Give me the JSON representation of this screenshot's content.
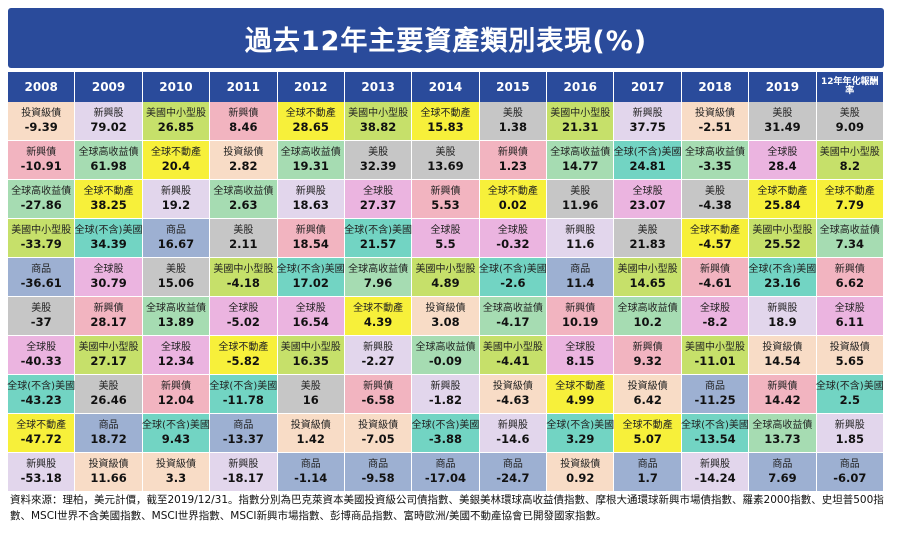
{
  "title": "過去12年主要資產類別表現(%)",
  "footnote": "資料來源：理柏，美元計價，截至2019/12/31。指數分別為巴克萊資本美國投資級公司債指數、美銀美林環球高收益債指數、摩根大通環球新興市場債指數、羅素2000指數、史坦普500指數、MSCI世界不含美國指數、MSCI世界指數、MSCI新興市場指數、彭博商品指數、富時歐洲/美國不動產協會已開發國家指數。",
  "colors": {
    "title_bg": "#2a4b9b",
    "投資級債": "#f8dcc6",
    "新興股": "#e2d6ec",
    "美國中小型股": "#c6e06a",
    "新興債": "#f2b4c0",
    "全球不動產": "#f7f03a",
    "美股": "#c6c6c6",
    "全球股": "#ebb4e0",
    "全球高收益債": "#a6dcb2",
    "商品": "#9db0d2",
    "全球(不含)美國": "#72d4c3"
  },
  "chart_data": {
    "type": "table",
    "title": "過去12年主要資產類別表現(%)",
    "columns": [
      "2008",
      "2009",
      "2010",
      "2011",
      "2012",
      "2013",
      "2014",
      "2015",
      "2016",
      "2017",
      "2018",
      "2019",
      "12年年化報酬率"
    ],
    "rows": [
      [
        {
          "name": "投資級債",
          "value": "-9.39"
        },
        {
          "name": "新興股",
          "value": "79.02"
        },
        {
          "name": "美國中小型股",
          "value": "26.85"
        },
        {
          "name": "新興債",
          "value": "8.46"
        },
        {
          "name": "全球不動產",
          "value": "28.65"
        },
        {
          "name": "美國中小型股",
          "value": "38.82"
        },
        {
          "name": "全球不動產",
          "value": "15.83"
        },
        {
          "name": "美股",
          "value": "1.38"
        },
        {
          "name": "美國中小型股",
          "value": "21.31"
        },
        {
          "name": "新興股",
          "value": "37.75"
        },
        {
          "name": "投資級債",
          "value": "-2.51"
        },
        {
          "name": "美股",
          "value": "31.49"
        },
        {
          "name": "美股",
          "value": "9.09"
        }
      ],
      [
        {
          "name": "新興債",
          "value": "-10.91"
        },
        {
          "name": "全球高收益債",
          "value": "61.98"
        },
        {
          "name": "全球不動產",
          "value": "20.4"
        },
        {
          "name": "投資級債",
          "value": "2.82"
        },
        {
          "name": "全球高收益債",
          "value": "19.31"
        },
        {
          "name": "美股",
          "value": "32.39"
        },
        {
          "name": "美股",
          "value": "13.69"
        },
        {
          "name": "新興債",
          "value": "1.23"
        },
        {
          "name": "全球高收益債",
          "value": "14.77"
        },
        {
          "name": "全球(不含)美國",
          "value": "24.81"
        },
        {
          "name": "全球高收益債",
          "value": "-3.35"
        },
        {
          "name": "全球股",
          "value": "28.4"
        },
        {
          "name": "美國中小型股",
          "value": "8.2"
        }
      ],
      [
        {
          "name": "全球高收益債",
          "value": "-27.86"
        },
        {
          "name": "全球不動產",
          "value": "38.25"
        },
        {
          "name": "新興股",
          "value": "19.2"
        },
        {
          "name": "全球高收益債",
          "value": "2.63"
        },
        {
          "name": "新興股",
          "value": "18.63"
        },
        {
          "name": "全球股",
          "value": "27.37"
        },
        {
          "name": "新興債",
          "value": "5.53"
        },
        {
          "name": "全球不動產",
          "value": "0.02"
        },
        {
          "name": "美股",
          "value": "11.96"
        },
        {
          "name": "全球股",
          "value": "23.07"
        },
        {
          "name": "美股",
          "value": "-4.38"
        },
        {
          "name": "全球不動產",
          "value": "25.84"
        },
        {
          "name": "全球不動產",
          "value": "7.79"
        }
      ],
      [
        {
          "name": "美國中小型股",
          "value": "-33.79"
        },
        {
          "name": "全球(不含)美國",
          "value": "34.39"
        },
        {
          "name": "商品",
          "value": "16.67"
        },
        {
          "name": "美股",
          "value": "2.11"
        },
        {
          "name": "新興債",
          "value": "18.54"
        },
        {
          "name": "全球(不含)美國",
          "value": "21.57"
        },
        {
          "name": "全球股",
          "value": "5.5"
        },
        {
          "name": "全球股",
          "value": "-0.32"
        },
        {
          "name": "新興股",
          "value": "11.6"
        },
        {
          "name": "美股",
          "value": "21.83"
        },
        {
          "name": "全球不動產",
          "value": "-4.57"
        },
        {
          "name": "美國中小型股",
          "value": "25.52"
        },
        {
          "name": "全球高收益債",
          "value": "7.34"
        }
      ],
      [
        {
          "name": "商品",
          "value": "-36.61"
        },
        {
          "name": "全球股",
          "value": "30.79"
        },
        {
          "name": "美股",
          "value": "15.06"
        },
        {
          "name": "美國中小型股",
          "value": "-4.18"
        },
        {
          "name": "全球(不含)美國",
          "value": "17.02"
        },
        {
          "name": "全球高收益債",
          "value": "7.96"
        },
        {
          "name": "美國中小型股",
          "value": "4.89"
        },
        {
          "name": "全球(不含)美國",
          "value": "-2.6"
        },
        {
          "name": "商品",
          "value": "11.4"
        },
        {
          "name": "美國中小型股",
          "value": "14.65"
        },
        {
          "name": "新興債",
          "value": "-4.61"
        },
        {
          "name": "全球(不含)美國",
          "value": "23.16"
        },
        {
          "name": "新興債",
          "value": "6.62"
        }
      ],
      [
        {
          "name": "美股",
          "value": "-37"
        },
        {
          "name": "新興債",
          "value": "28.17"
        },
        {
          "name": "全球高收益債",
          "value": "13.89"
        },
        {
          "name": "全球股",
          "value": "-5.02"
        },
        {
          "name": "全球股",
          "value": "16.54"
        },
        {
          "name": "全球不動產",
          "value": "4.39"
        },
        {
          "name": "投資級債",
          "value": "3.08"
        },
        {
          "name": "全球高收益債",
          "value": "-4.17"
        },
        {
          "name": "新興債",
          "value": "10.19"
        },
        {
          "name": "全球高收益債",
          "value": "10.2"
        },
        {
          "name": "全球股",
          "value": "-8.2"
        },
        {
          "name": "新興股",
          "value": "18.9"
        },
        {
          "name": "全球股",
          "value": "6.11"
        }
      ],
      [
        {
          "name": "全球股",
          "value": "-40.33"
        },
        {
          "name": "美國中小型股",
          "value": "27.17"
        },
        {
          "name": "全球股",
          "value": "12.34"
        },
        {
          "name": "全球不動產",
          "value": "-5.82"
        },
        {
          "name": "美國中小型股",
          "value": "16.35"
        },
        {
          "name": "新興股",
          "value": "-2.27"
        },
        {
          "name": "全球高收益債",
          "value": "-0.09"
        },
        {
          "name": "美國中小型股",
          "value": "-4.41"
        },
        {
          "name": "全球股",
          "value": "8.15"
        },
        {
          "name": "新興債",
          "value": "9.32"
        },
        {
          "name": "美國中小型股",
          "value": "-11.01"
        },
        {
          "name": "投資級債",
          "value": "14.54"
        },
        {
          "name": "投資級債",
          "value": "5.65"
        }
      ],
      [
        {
          "name": "全球(不含)美國",
          "value": "-43.23"
        },
        {
          "name": "美股",
          "value": "26.46"
        },
        {
          "name": "新興債",
          "value": "12.04"
        },
        {
          "name": "全球(不含)美國",
          "value": "-11.78"
        },
        {
          "name": "美股",
          "value": "16"
        },
        {
          "name": "新興債",
          "value": "-6.58"
        },
        {
          "name": "新興股",
          "value": "-1.82"
        },
        {
          "name": "投資級債",
          "value": "-4.63"
        },
        {
          "name": "全球不動產",
          "value": "4.99"
        },
        {
          "name": "投資級債",
          "value": "6.42"
        },
        {
          "name": "商品",
          "value": "-11.25"
        },
        {
          "name": "新興債",
          "value": "14.42"
        },
        {
          "name": "全球(不含)美國",
          "value": "2.5"
        }
      ],
      [
        {
          "name": "全球不動產",
          "value": "-47.72"
        },
        {
          "name": "商品",
          "value": "18.72"
        },
        {
          "name": "全球(不含)美國",
          "value": "9.43"
        },
        {
          "name": "商品",
          "value": "-13.37"
        },
        {
          "name": "投資級債",
          "value": "1.42"
        },
        {
          "name": "投資級債",
          "value": "-7.05"
        },
        {
          "name": "全球(不含)美國",
          "value": "-3.88"
        },
        {
          "name": "新興股",
          "value": "-14.6"
        },
        {
          "name": "全球(不含)美國",
          "value": "3.29"
        },
        {
          "name": "全球不動產",
          "value": "5.07"
        },
        {
          "name": "全球(不含)美國",
          "value": "-13.54"
        },
        {
          "name": "全球高收益債",
          "value": "13.73"
        },
        {
          "name": "新興股",
          "value": "1.85"
        }
      ],
      [
        {
          "name": "新興股",
          "value": "-53.18"
        },
        {
          "name": "投資級債",
          "value": "11.66"
        },
        {
          "name": "投資級債",
          "value": "3.3"
        },
        {
          "name": "新興股",
          "value": "-18.17"
        },
        {
          "name": "商品",
          "value": "-1.14"
        },
        {
          "name": "商品",
          "value": "-9.58"
        },
        {
          "name": "商品",
          "value": "-17.04"
        },
        {
          "name": "商品",
          "value": "-24.7"
        },
        {
          "name": "投資級債",
          "value": "0.92"
        },
        {
          "name": "商品",
          "value": "1.7"
        },
        {
          "name": "新興股",
          "value": "-14.24"
        },
        {
          "name": "商品",
          "value": "7.69"
        },
        {
          "name": "商品",
          "value": "-6.07"
        }
      ]
    ]
  }
}
